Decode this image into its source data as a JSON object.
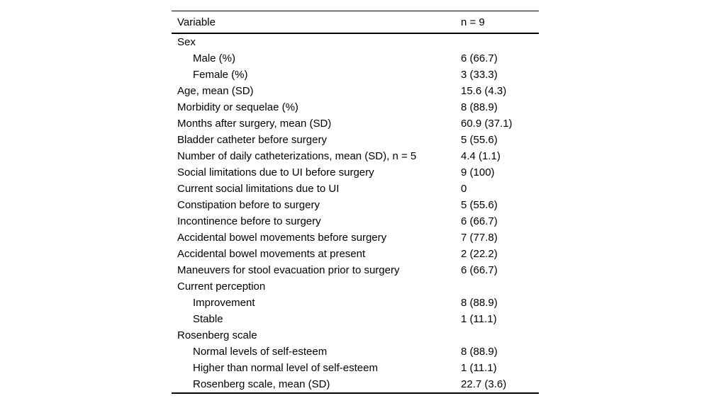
{
  "table": {
    "header": {
      "variable": "Variable",
      "value": "n = 9"
    },
    "rows": [
      {
        "label": "Sex",
        "value": "",
        "indent": 0
      },
      {
        "label": "Male (%)",
        "value": "6 (66.7)",
        "indent": 1
      },
      {
        "label": "Female (%)",
        "value": "3 (33.3)",
        "indent": 1
      },
      {
        "label": "Age, mean (SD)",
        "value": "15.6 (4.3)",
        "indent": 0
      },
      {
        "label": "Morbidity or sequelae (%)",
        "value": "8 (88.9)",
        "indent": 0
      },
      {
        "label": "Months after surgery, mean (SD)",
        "value": "60.9 (37.1)",
        "indent": 0
      },
      {
        "label": "Bladder catheter before surgery",
        "value": "5 (55.6)",
        "indent": 0
      },
      {
        "label": "Number of daily catheterizations, mean (SD), n = 5",
        "value": "4.4 (1.1)",
        "indent": 0
      },
      {
        "label": "Social limitations due to UI before surgery",
        "value": "9 (100)",
        "indent": 0
      },
      {
        "label": "Current social limitations due to UI",
        "value": "0",
        "indent": 0
      },
      {
        "label": "Constipation before to surgery",
        "value": "5 (55.6)",
        "indent": 0
      },
      {
        "label": "Incontinence before to surgery",
        "value": "6 (66.7)",
        "indent": 0
      },
      {
        "label": "Accidental bowel movements before surgery",
        "value": "7 (77.8)",
        "indent": 0
      },
      {
        "label": "Accidental bowel movements at present",
        "value": "2 (22.2)",
        "indent": 0
      },
      {
        "label": "Maneuvers for stool evacuation prior to surgery",
        "value": "6 (66.7)",
        "indent": 0
      },
      {
        "label": "Current perception",
        "value": "",
        "indent": 0
      },
      {
        "label": "Improvement",
        "value": "8 (88.9)",
        "indent": 1
      },
      {
        "label": "Stable",
        "value": "1 (11.1)",
        "indent": 1
      },
      {
        "label": "Rosenberg scale",
        "value": "",
        "indent": 0
      },
      {
        "label": "Normal levels of self-esteem",
        "value": "8 (88.9)",
        "indent": 1
      },
      {
        "label": "Higher than normal level of self-esteem",
        "value": "1 (11.1)",
        "indent": 1
      },
      {
        "label": "Rosenberg scale, mean (SD)",
        "value": "22.7 (3.6)",
        "indent": 1
      }
    ]
  }
}
